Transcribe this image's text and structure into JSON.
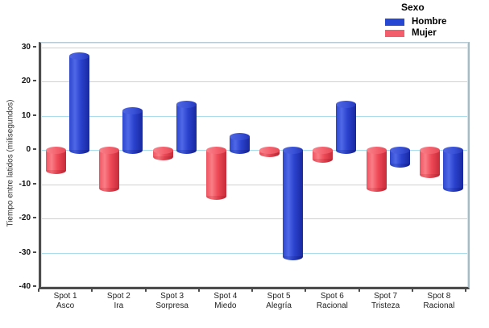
{
  "legend": {
    "title": "Sexo",
    "items": [
      {
        "label": "Hombre",
        "color": "#2547d2"
      },
      {
        "label": "Mujer",
        "color": "#f25e6c"
      }
    ]
  },
  "chart_data": {
    "type": "bar",
    "style": "3d-cylinder",
    "title": "",
    "ylabel": "Tiempo entre latidos (milisegundos)",
    "xlabel": "",
    "categories": [
      {
        "line1": "Spot 1",
        "line2": "Asco"
      },
      {
        "line1": "Spot 2",
        "line2": "Ira"
      },
      {
        "line1": "Spot 3",
        "line2": "Sorpresa"
      },
      {
        "line1": "Spot 4",
        "line2": "Miedo"
      },
      {
        "line1": "Spot 5",
        "line2": "Alegría"
      },
      {
        "line1": "Spot 6",
        "line2": "Racional"
      },
      {
        "line1": "Spot 7",
        "line2": "Tristeza"
      },
      {
        "line1": "Spot 8",
        "line2": "Racional"
      }
    ],
    "series": [
      {
        "name": "Mujer",
        "color": "#f25e6c",
        "position": "left",
        "values": [
          -6,
          -11,
          -2,
          -13.5,
          -1,
          -2.5,
          -11,
          -7
        ]
      },
      {
        "name": "Hombre",
        "color": "#2547d2",
        "position": "right",
        "values": [
          27.5,
          11.5,
          13.5,
          4,
          -31,
          13.5,
          -4,
          -11
        ]
      }
    ],
    "legend_title": "Sexo",
    "legend_order": [
      "Hombre",
      "Mujer"
    ],
    "legend_position": "top-right",
    "yticks": [
      30,
      20,
      10,
      0,
      -10,
      -20,
      -30,
      -40
    ],
    "ylim": [
      -40,
      31.3
    ],
    "grid": true,
    "gridline_color": "#aadeec",
    "background": "#ffffff"
  }
}
